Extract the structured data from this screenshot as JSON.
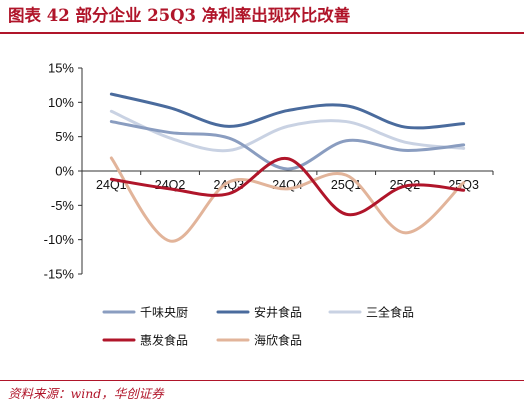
{
  "header": {
    "title": "图表 42   部分企业 25Q3 净利率出现环比改善"
  },
  "footer": {
    "source": "资料来源：wind，华创证券"
  },
  "chart_data": {
    "type": "line",
    "title": "",
    "xlabel": "",
    "ylabel": "",
    "categories": [
      "24Q1",
      "24Q2",
      "24Q3",
      "24Q4",
      "25Q1",
      "25Q2",
      "25Q3"
    ],
    "ylim": [
      -15,
      15
    ],
    "yticks": [
      -15,
      -10,
      -5,
      0,
      5,
      10,
      15
    ],
    "ytick_labels": [
      "-15%",
      "-10%",
      "-5%",
      "0%",
      "5%",
      "10%",
      "15%"
    ],
    "unit": "%",
    "grid": false,
    "legend_position": "bottom",
    "series": [
      {
        "name": "千味央厨",
        "color": "#8a9dc0",
        "values": [
          7.2,
          5.6,
          4.8,
          0.3,
          4.4,
          3.0,
          3.8
        ]
      },
      {
        "name": "安井食品",
        "color": "#4a6b9d",
        "values": [
          11.2,
          9.2,
          6.5,
          8.8,
          9.5,
          6.4,
          6.9
        ]
      },
      {
        "name": "三全食品",
        "color": "#c9d2e3",
        "values": [
          8.7,
          4.8,
          3.0,
          6.5,
          7.2,
          4.2,
          3.3
        ]
      },
      {
        "name": "惠发食品",
        "color": "#b0152a",
        "values": [
          -1.2,
          -2.6,
          -3.3,
          1.8,
          -6.3,
          -2.2,
          -2.8
        ]
      },
      {
        "name": "海欣食品",
        "color": "#e2b49a",
        "values": [
          1.9,
          -10.2,
          -1.6,
          -2.6,
          -0.6,
          -9.0,
          -1.7
        ]
      }
    ]
  }
}
